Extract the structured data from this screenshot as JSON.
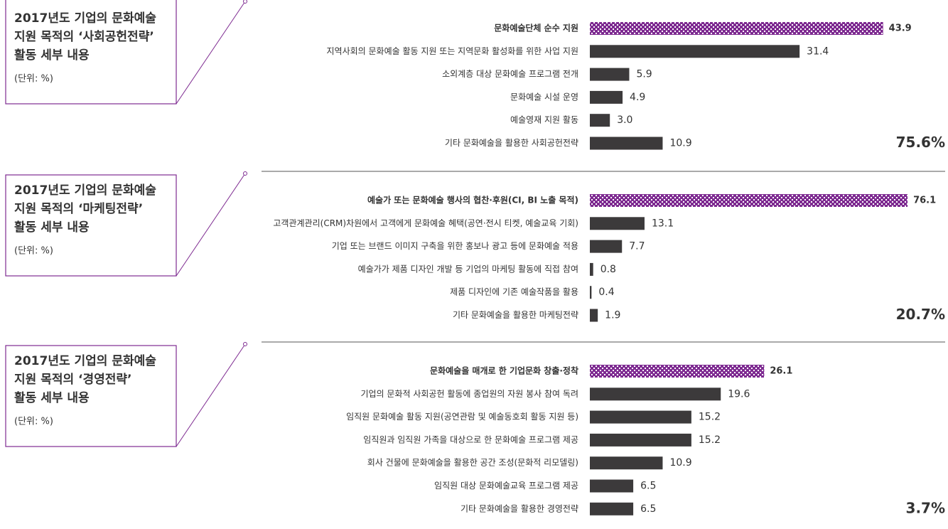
{
  "chart_data": [
    {
      "type": "bar",
      "title": [
        "2017년도 기업의 문화예술",
        "지원 목적의 ‘사회공헌전략’",
        "활동 세부 내용"
      ],
      "unit": "(단위: %)",
      "categories": [
        "문화예술단체 순수 지원",
        "지역사회의 문화예술 활동 지원 또는 지역문화 활성화를 위한 사업 지원",
        "소외계층 대상 문화예술 프로그램 전개",
        "문화예술 시설 운영",
        "예술영재 지원 활동",
        "기타 문화예술을 활용한 사회공헌전략"
      ],
      "values": [
        43.9,
        31.4,
        5.9,
        4.9,
        3.0,
        10.9
      ],
      "value_labels": [
        "43.9",
        "31.4",
        "5.9",
        "4.9",
        "3.0",
        "10.9"
      ],
      "xlim": [
        0,
        50
      ],
      "color": "#3c3a3b",
      "highlight_color": "#7e2b91",
      "highlight": 0,
      "annotation": "75.6%"
    },
    {
      "type": "bar",
      "title": [
        "2017년도 기업의 문화예술",
        "지원 목적의 ‘마케팅전략’",
        "활동 세부 내용"
      ],
      "unit": "(단위: %)",
      "categories": [
        "예술가 또는 문화예술 행사의 협찬·후원(CI, BI 노출 목적)",
        "고객관계관리(CRM)차원에서 고객에게 문화예술 혜택(공연·전시 티켓, 예술교육 기회)",
        "기업 또는 브랜드 이미지 구축을 위한 홍보나 광고 등에 문화예술 적용",
        "예술가가 제품 디자인 개발 등 기업의 마케팅 활동에 직접 참여",
        "제품 디자인에 기존 예술작품을 활용",
        "기타 문화예술을 활용한 마케팅전략"
      ],
      "values": [
        76.1,
        13.1,
        7.7,
        0.8,
        0.4,
        1.9
      ],
      "value_labels": [
        "76.1",
        "13.1",
        "7.7",
        "0.8",
        "0.4",
        "1.9"
      ],
      "xlim": [
        0,
        80
      ],
      "color": "#3c3a3b",
      "highlight_color": "#7e2b91",
      "highlight": 0,
      "annotation": "20.7%"
    },
    {
      "type": "bar",
      "title": [
        "2017년도 기업의 문화예술",
        "지원 목적의 ‘경영전략’",
        "활동 세부 내용"
      ],
      "unit": "(단위: %)",
      "categories": [
        "문화예술을 매개로 한 기업문화 창출·정착",
        "기업의 문화적 사회공헌 활동에 종업원의 자원 봉사 참여 독려",
        "임직원 문화예술 활동 지원(공연관람 및 예술동호회 활동 지원 등)",
        "임직원과 임직원 가족을 대상으로 한 문화예술 프로그램 제공",
        "회사 건물에 문화예술을 활용한 공간 조성(문화적 리모델링)",
        "임직원 대상 문화예술교육 프로그램 제공",
        "기타 문화예술을 활용한 경영전략"
      ],
      "values": [
        26.1,
        19.6,
        15.2,
        15.2,
        10.9,
        6.5,
        6.5
      ],
      "value_labels": [
        "26.1",
        "19.6",
        "15.2",
        "15.2",
        "10.9",
        "6.5",
        "6.5"
      ],
      "xlim": [
        0,
        50
      ],
      "color": "#3c3a3b",
      "highlight_color": "#7e2b91",
      "highlight": 0,
      "annotation": "3.7%"
    }
  ]
}
